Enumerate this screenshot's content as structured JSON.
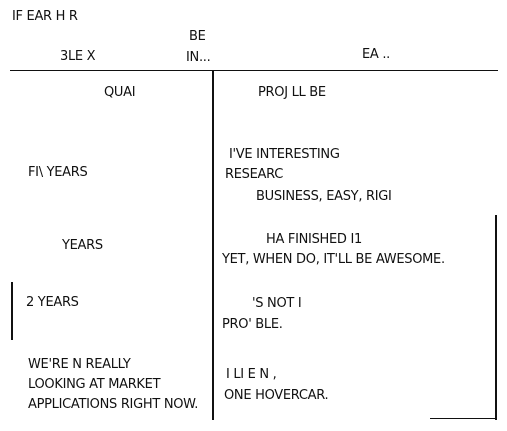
{
  "header": {
    "fragment_top": "IF      EAR  H  R",
    "fragment_left": "3LE       X",
    "fragment_be": "BE",
    "fragment_in": "IN...",
    "fragment_right": "EA      .."
  },
  "columns": {
    "left_header": "QUAI",
    "right_header": "PROJ       LL BE"
  },
  "rows": [
    {
      "label": "FI\\   YEARS",
      "lines": [
        "I'VE                    INTERESTING",
        "RESEARC",
        "BUSINESS,              EASY, RIGI"
      ]
    },
    {
      "label": "YEARS",
      "lines": [
        "HA              FINISHED      I1",
        "YET,        WHEN    DO, IT'LL BE AWESOME."
      ]
    },
    {
      "label": "2      YEARS",
      "lines": [
        "'S NOT I",
        "PRO'                  BLE."
      ]
    },
    {
      "label_lines": [
        "WE'RE N      REALLY",
        "LOOKING AT MARKET",
        "APPLICATIONS RIGHT NOW."
      ],
      "lines": [
        "I LI       E    N          ,",
        "ONE               HOVERCAR."
      ]
    }
  ]
}
